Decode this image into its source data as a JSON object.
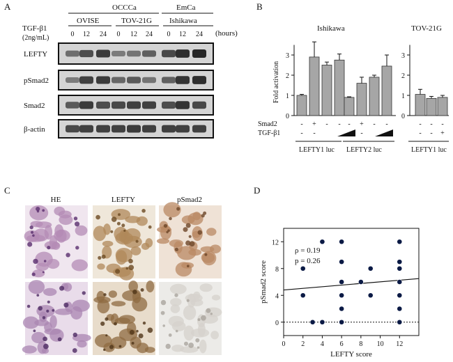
{
  "panel_labels": {
    "a": "A",
    "b": "B",
    "c": "C",
    "d": "D"
  },
  "panelA": {
    "group_top": [
      "OCCCa",
      "EmCa"
    ],
    "cell_lines": [
      "OVISE",
      "TOV-21G",
      "Ishikawa"
    ],
    "treatment_label": "TGF-β1",
    "treatment_conc": "(2ng/mL)",
    "timepoints": [
      "0",
      "12",
      "24",
      "0",
      "12",
      "24",
      "0",
      "12",
      "24"
    ],
    "time_unit": "(hours)",
    "blots": [
      "LEFTY",
      "pSmad2",
      "Smad2",
      "β-actin"
    ]
  },
  "panelB": {
    "title_left": "Ishikawa",
    "title_right": "TOV-21G",
    "ylabel": "Fold activation",
    "row_labels": [
      "Smad2",
      "TGF-β1"
    ],
    "signs_left_smad2": [
      "-",
      "+",
      "-",
      "-",
      "-",
      "+",
      "-",
      "-"
    ],
    "signs_left_tgf": [
      "-",
      "-",
      "",
      "",
      "-",
      "-",
      "",
      ""
    ],
    "signs_right_smad2": [
      "-",
      "-",
      "-"
    ],
    "signs_right_tgf": [
      "-",
      "-",
      "+"
    ],
    "group_labels_left": [
      "LEFTY1 luc",
      "LEFTY2 luc"
    ],
    "group_labels_right": [
      "LEFTY1 luc"
    ]
  },
  "panelC": {
    "headers": [
      "HE",
      "LEFTY",
      "pSmad2"
    ]
  },
  "panelD": {
    "rho_text": "ρ = 0.19",
    "p_text": "p = 0.26"
  },
  "colors": {
    "bar_fill": "#a6a6a6",
    "blot_bg": "#d4d4d4",
    "band": "#1e1e1e",
    "point": "#0b1a45",
    "he_tissue": "#b48bb6",
    "lefty_tissue": "#b0885a",
    "psmad_tissue": "#b98863"
  },
  "chart_data": [
    {
      "type": "bar",
      "panel": "B-left",
      "title": "Ishikawa",
      "ylabel": "Fold activation",
      "ylim": [
        0,
        3.5
      ],
      "categories": [
        "LEFTY1 luc: control",
        "LEFTY1 luc: Smad2",
        "LEFTY1 luc: TGF-β1 low",
        "LEFTY1 luc: TGF-β1 high",
        "LEFTY2 luc: control",
        "LEFTY2 luc: Smad2",
        "LEFTY2 luc: TGF-β1 low",
        "LEFTY2 luc: TGF-β1 high"
      ],
      "values": [
        1.0,
        2.9,
        2.5,
        2.75,
        0.9,
        1.6,
        1.9,
        2.45
      ],
      "errors": [
        0.05,
        0.75,
        0.15,
        0.3,
        0.03,
        0.3,
        0.1,
        0.55
      ]
    },
    {
      "type": "bar",
      "panel": "B-right",
      "title": "TOV-21G",
      "ylim": [
        0,
        3.5
      ],
      "categories": [
        "LEFTY1 luc: control",
        "LEFTY1 luc: Smad2",
        "LEFTY1 luc: TGF-β1"
      ],
      "values": [
        1.05,
        0.85,
        0.9
      ],
      "errors": [
        0.25,
        0.1,
        0.1
      ]
    },
    {
      "type": "scatter",
      "panel": "D",
      "xlabel": "LEFTY score",
      "ylabel": "pSmad2 score",
      "xlim": [
        0,
        14
      ],
      "ylim": [
        -2,
        14
      ],
      "xticks": [
        0,
        2,
        4,
        6,
        8,
        10,
        12
      ],
      "yticks": [
        0,
        4,
        8,
        12
      ],
      "points": [
        [
          2,
          8
        ],
        [
          2,
          4
        ],
        [
          3,
          0
        ],
        [
          4,
          0
        ],
        [
          4,
          12
        ],
        [
          6,
          12
        ],
        [
          6,
          9
        ],
        [
          6,
          6
        ],
        [
          6,
          4
        ],
        [
          6,
          2
        ],
        [
          6,
          0
        ],
        [
          8,
          6
        ],
        [
          9,
          8
        ],
        [
          9,
          4
        ],
        [
          12,
          12
        ],
        [
          12,
          9
        ],
        [
          12,
          8
        ],
        [
          12,
          6
        ],
        [
          12,
          4
        ],
        [
          12,
          2
        ],
        [
          12,
          0
        ]
      ],
      "fit_line": {
        "x0": 0,
        "y0": 4.8,
        "x1": 14,
        "y1": 6.5
      },
      "reference_line_y": 0,
      "annotations": [
        "ρ = 0.19",
        "p = 0.26"
      ]
    }
  ]
}
